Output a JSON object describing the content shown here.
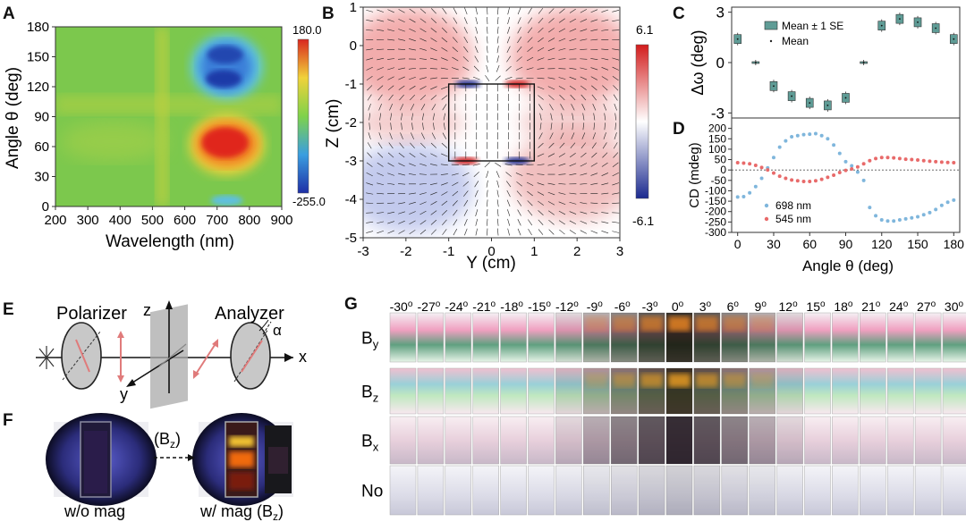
{
  "panels": {
    "A": "A",
    "B": "B",
    "C": "C",
    "D": "D",
    "E": "E",
    "F": "F",
    "G": "G"
  },
  "chart_data": [
    {
      "id": "A",
      "type": "heatmap",
      "xlabel": "Wavelength (nm)",
      "ylabel": "Angle θ (deg)",
      "xlim": [
        200,
        900
      ],
      "ylim": [
        0,
        180
      ],
      "xticks": [
        "200",
        "300",
        "400",
        "500",
        "600",
        "700",
        "800",
        "900"
      ],
      "yticks": [
        "0",
        "30",
        "60",
        "90",
        "120",
        "150",
        "180"
      ],
      "colorbar": {
        "max_label": "180.0",
        "min_label": "-255.0",
        "min": -255,
        "max": 180
      },
      "features": [
        {
          "x": 730,
          "y": 65,
          "value": 180
        },
        {
          "x": 730,
          "y": 140,
          "value": -255
        },
        {
          "x": 530,
          "y": 100,
          "value": 60
        },
        {
          "x": 730,
          "y": 8,
          "value": -150
        }
      ]
    },
    {
      "id": "B",
      "type": "heatmap",
      "xlabel": "Y (cm)",
      "ylabel": "Z (cm)",
      "xlim": [
        -3,
        3
      ],
      "ylim": [
        -5,
        1
      ],
      "xticks": [
        "-3",
        "-2",
        "-1",
        "0",
        "1",
        "2",
        "3"
      ],
      "yticks": [
        "1",
        "0",
        "-1",
        "-2",
        "-3",
        "-4",
        "-5"
      ],
      "colorbar": {
        "max_label": "6.1",
        "min_label": "-6.1",
        "min": -6.1,
        "max": 6.1
      },
      "magnet": {
        "y": [
          -1,
          1
        ],
        "z": [
          -3,
          -1
        ]
      }
    },
    {
      "id": "C",
      "type": "scatter",
      "ylabel": "Δω (deg)",
      "xlim": [
        -5,
        185
      ],
      "ylim": [
        -3.3,
        3.3
      ],
      "yticks": [
        "3",
        "0",
        "-3"
      ],
      "legend": {
        "items": [
          "Mean ± 1 SE",
          "Mean"
        ],
        "position": "top-left"
      },
      "x": [
        0,
        15,
        30,
        45,
        60,
        75,
        90,
        105,
        120,
        135,
        150,
        165,
        180
      ],
      "values": [
        1.4,
        0,
        -1.4,
        -2.0,
        -2.4,
        -2.55,
        -2.1,
        0,
        2.2,
        2.6,
        2.4,
        2.05,
        1.4
      ]
    },
    {
      "id": "D",
      "type": "scatter",
      "xlabel": "Angle θ (deg)",
      "ylabel": "CD (mdeg)",
      "xlim": [
        -5,
        185
      ],
      "ylim": [
        -300,
        250
      ],
      "xticks": [
        "0",
        "30",
        "60",
        "90",
        "120",
        "150",
        "180"
      ],
      "yticks": [
        "200",
        "150",
        "100",
        "50",
        "0",
        "-50",
        "-100",
        "-150",
        "-200",
        "-250",
        "-300"
      ],
      "legend": {
        "position": "bottom-left"
      },
      "series": [
        {
          "name": "698 nm",
          "color": "#7fb6dc",
          "x": [
            0,
            5,
            10,
            15,
            20,
            25,
            30,
            35,
            40,
            45,
            50,
            55,
            60,
            65,
            70,
            75,
            80,
            85,
            90,
            95,
            100,
            105,
            110,
            115,
            120,
            125,
            130,
            135,
            140,
            145,
            150,
            155,
            160,
            165,
            170,
            175,
            180
          ],
          "values": [
            -130,
            -128,
            -110,
            -80,
            -40,
            10,
            60,
            110,
            140,
            160,
            165,
            170,
            172,
            175,
            165,
            150,
            120,
            80,
            40,
            20,
            -10,
            -50,
            -180,
            -220,
            -240,
            -245,
            -245,
            -240,
            -235,
            -230,
            -225,
            -215,
            -205,
            -190,
            -170,
            -155,
            -145
          ]
        },
        {
          "name": "545 nm",
          "color": "#e86a6a",
          "x": [
            0,
            5,
            10,
            15,
            20,
            25,
            30,
            35,
            40,
            45,
            50,
            55,
            60,
            65,
            70,
            75,
            80,
            85,
            90,
            95,
            100,
            105,
            110,
            115,
            120,
            125,
            130,
            135,
            140,
            145,
            150,
            155,
            160,
            165,
            170,
            175,
            180
          ],
          "values": [
            35,
            33,
            30,
            22,
            12,
            0,
            -15,
            -30,
            -40,
            -48,
            -52,
            -55,
            -55,
            -52,
            -45,
            -35,
            -25,
            -12,
            -2,
            5,
            15,
            30,
            45,
            55,
            60,
            60,
            58,
            55,
            52,
            50,
            48,
            45,
            42,
            40,
            38,
            36,
            35
          ]
        }
      ]
    }
  ],
  "schematic": {
    "polarizer": "Polarizer",
    "analyzer": "Analyzer",
    "z": "z",
    "y": "y",
    "x": "x",
    "alpha": "α"
  },
  "photos": {
    "without": "w/o mag",
    "with": "w/ mag (B",
    "arrow": "(B",
    "sub": "z"
  },
  "grid": {
    "angles": [
      "-30",
      "-27",
      "-24",
      "-21",
      "-18",
      "-15",
      "-12",
      "-9",
      "-6",
      "-3",
      "0",
      "3",
      "6",
      "9",
      "12",
      "15",
      "18",
      "21",
      "24",
      "27",
      "30"
    ],
    "deg": "o",
    "rows": [
      {
        "main": "B",
        "sub": "y"
      },
      {
        "main": "B",
        "sub": "z"
      },
      {
        "main": "B",
        "sub": "x"
      },
      {
        "main": "No",
        "sub": ""
      }
    ]
  }
}
